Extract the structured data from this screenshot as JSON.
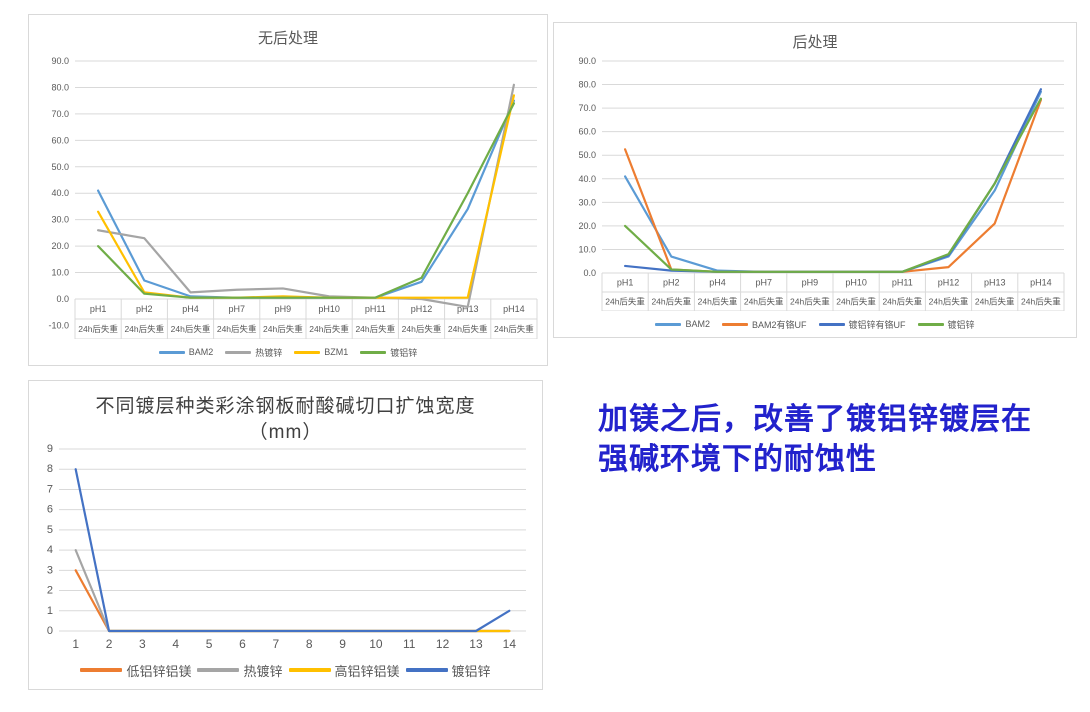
{
  "annotation": {
    "line1": "加镁之后，改善了镀铝锌镀层在",
    "line2": "强碱环境下的耐蚀性",
    "color": "#2222CC"
  },
  "chart_data": [
    {
      "type": "line",
      "title": "无后处理",
      "categories": [
        "pH1",
        "pH2",
        "pH4",
        "pH7",
        "pH9",
        "pH10",
        "pH11",
        "pH12",
        "pH13",
        "pH14"
      ],
      "category_sublabel": "24h后失重",
      "ylim": [
        -10,
        90
      ],
      "y_step": 10,
      "y_decimals": 1,
      "grid": true,
      "legend_position": "bottom",
      "series": [
        {
          "name": "BAM2",
          "color": "#5B9BD5",
          "values": [
            41,
            7,
            1,
            0.5,
            0.5,
            0.5,
            0.5,
            6.5,
            34,
            75
          ]
        },
        {
          "name": "热镀锌",
          "color": "#A5A5A5",
          "values": [
            26,
            23,
            2.5,
            3.5,
            4,
            1,
            0.5,
            0,
            -3,
            81
          ]
        },
        {
          "name": "BZM1",
          "color": "#FFC000",
          "values": [
            33,
            2.5,
            0.5,
            0.5,
            1,
            0.5,
            0.5,
            0.5,
            0.5,
            77
          ]
        },
        {
          "name": "镀铝锌",
          "color": "#70AD47",
          "values": [
            20,
            2,
            0.5,
            0.5,
            0.5,
            0.5,
            0.5,
            8,
            40,
            74
          ]
        }
      ]
    },
    {
      "type": "line",
      "title": "后处理",
      "categories": [
        "pH1",
        "pH2",
        "pH4",
        "pH7",
        "pH9",
        "pH10",
        "pH11",
        "pH12",
        "pH13",
        "pH14"
      ],
      "category_sublabel": "24h后失重",
      "ylim": [
        0,
        90
      ],
      "y_step": 10,
      "y_decimals": 1,
      "grid": true,
      "legend_position": "bottom",
      "series": [
        {
          "name": "BAM2",
          "color": "#5B9BD5",
          "values": [
            41,
            7,
            1,
            0.5,
            0.5,
            0.5,
            0.5,
            7,
            35,
            77
          ]
        },
        {
          "name": "BAM2有铬UF",
          "color": "#ED7D31",
          "values": [
            52.5,
            1.5,
            0.5,
            0.5,
            0.5,
            0.5,
            0.5,
            2.5,
            21,
            73.5
          ]
        },
        {
          "name": "镀铝锌有铬UF",
          "color": "#4472C4",
          "values": [
            3,
            1,
            0.5,
            0.5,
            0.5,
            0.5,
            0.5,
            7.5,
            38,
            78
          ]
        },
        {
          "name": "镀铝锌",
          "color": "#70AD47",
          "values": [
            20,
            1.5,
            0.5,
            0.5,
            0.5,
            0.5,
            0.5,
            8,
            38,
            74
          ]
        }
      ]
    },
    {
      "type": "line",
      "title": "不同镀层种类彩涂钢板耐酸碱切口扩蚀宽度",
      "title_line2": "（mm）",
      "categories": [
        "1",
        "2",
        "3",
        "4",
        "5",
        "6",
        "7",
        "8",
        "9",
        "10",
        "11",
        "12",
        "13",
        "14"
      ],
      "ylim": [
        0,
        9
      ],
      "y_step": 1,
      "y_decimals": 0,
      "grid": true,
      "legend_position": "bottom",
      "series": [
        {
          "name": "低铝锌铝镁",
          "color": "#ED7D31",
          "values": [
            3,
            0,
            0,
            0,
            0,
            0,
            0,
            0,
            0,
            0,
            0,
            0,
            0,
            0
          ]
        },
        {
          "name": "热镀锌",
          "color": "#A5A5A5",
          "values": [
            4,
            0,
            0,
            0,
            0,
            0,
            0,
            0,
            0,
            0,
            0,
            0,
            0,
            0
          ]
        },
        {
          "name": "高铝锌铝镁",
          "color": "#FFC000",
          "values": [
            null,
            0,
            0,
            0,
            0,
            0,
            0,
            0,
            0,
            0,
            0,
            0,
            0,
            0
          ]
        },
        {
          "name": "镀铝锌",
          "color": "#4472C4",
          "values": [
            8,
            0,
            0,
            0,
            0,
            0,
            0,
            0,
            0,
            0,
            0,
            0,
            0,
            1
          ]
        }
      ]
    }
  ]
}
